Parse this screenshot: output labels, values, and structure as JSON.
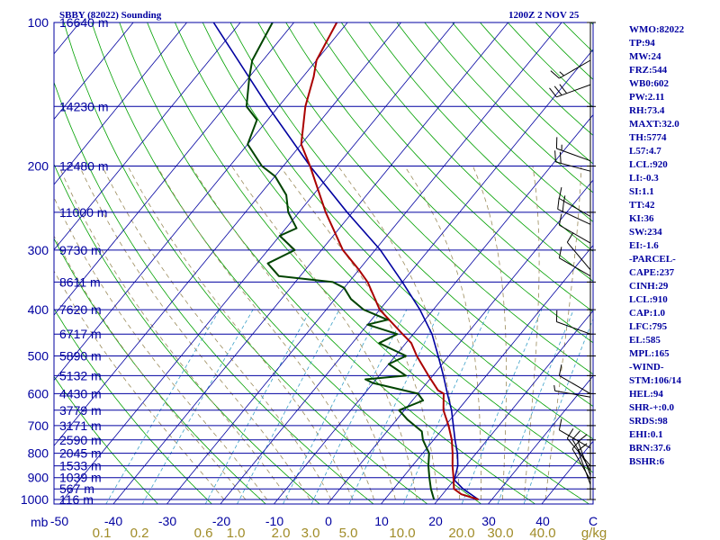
{
  "chart_data": {
    "type": "skew-t",
    "station_title": "SBBY (82022) Sounding",
    "time_title": "1200Z  2 NOV 25",
    "pressure_ticks": [
      100,
      200,
      300,
      400,
      500,
      600,
      700,
      800,
      900,
      1000
    ],
    "pressure_axis_label": "mb",
    "temp_ticks": [
      "-50",
      "-40",
      "-30",
      "-20",
      "-10",
      "0",
      "10",
      "20",
      "30",
      "40",
      "C"
    ],
    "mixing_ratio_ticks": [
      "0.1",
      "0.2",
      "0.6",
      "1.0",
      "2.0",
      "3.0",
      "5.0",
      "10.0",
      "20.0",
      "30.0",
      "40.0",
      "g/kg"
    ],
    "height_labels": [
      {
        "p": 100,
        "label": "16640 m"
      },
      {
        "p": 150,
        "label": "14230 m"
      },
      {
        "p": 200,
        "label": "12480 m"
      },
      {
        "p": 250,
        "label": "11000 m"
      },
      {
        "p": 300,
        "label": "9730 m"
      },
      {
        "p": 350,
        "label": "8611 m"
      },
      {
        "p": 400,
        "label": "7620 m"
      },
      {
        "p": 450,
        "label": "6717 m"
      },
      {
        "p": 500,
        "label": "5890 m"
      },
      {
        "p": 550,
        "label": "5132 m"
      },
      {
        "p": 600,
        "label": "4430 m"
      },
      {
        "p": 650,
        "label": "3779 m"
      },
      {
        "p": 700,
        "label": "3171 m"
      },
      {
        "p": 750,
        "label": "2590 m"
      },
      {
        "p": 800,
        "label": "2045 m"
      },
      {
        "p": 850,
        "label": "1533 m"
      },
      {
        "p": 900,
        "label": "1039 m"
      },
      {
        "p": 950,
        "label": "567 m"
      },
      {
        "p": 1000,
        "label": "116 m"
      }
    ],
    "temperature": {
      "color": "#aa0000",
      "points": [
        [
          1000,
          27.5
        ],
        [
          975,
          23.5
        ],
        [
          950,
          21.3
        ],
        [
          900,
          19.5
        ],
        [
          850,
          17.5
        ],
        [
          800,
          15.6
        ],
        [
          750,
          13.4
        ],
        [
          700,
          10.6
        ],
        [
          650,
          7.3
        ],
        [
          600,
          4.8
        ],
        [
          590,
          3.2
        ],
        [
          550,
          -0.8
        ],
        [
          500,
          -6.0
        ],
        [
          470,
          -9.0
        ],
        [
          450,
          -12.0
        ],
        [
          400,
          -20.0
        ],
        [
          350,
          -26.5
        ],
        [
          330,
          -30.0
        ],
        [
          300,
          -36.0
        ],
        [
          250,
          -45.0
        ],
        [
          200,
          -55.0
        ],
        [
          180,
          -60.0
        ],
        [
          150,
          -65.0
        ],
        [
          130,
          -68.0
        ],
        [
          120,
          -70.0
        ],
        [
          100,
          -72.0
        ]
      ]
    },
    "dewpoint": {
      "color": "#004400",
      "points": [
        [
          1000,
          19.2
        ],
        [
          950,
          17.0
        ],
        [
          900,
          15.0
        ],
        [
          850,
          13.0
        ],
        [
          800,
          11.2
        ],
        [
          750,
          8.0
        ],
        [
          720,
          6.5
        ],
        [
          680,
          2.0
        ],
        [
          650,
          -1.0
        ],
        [
          620,
          2.0
        ],
        [
          600,
          0.0
        ],
        [
          570,
          -10.0
        ],
        [
          560,
          -12.0
        ],
        [
          550,
          -5.0
        ],
        [
          520,
          -10.0
        ],
        [
          500,
          -8.0
        ],
        [
          470,
          -15.0
        ],
        [
          450,
          -13.0
        ],
        [
          430,
          -20.0
        ],
        [
          420,
          -17.0
        ],
        [
          400,
          -23.0
        ],
        [
          380,
          -27.0
        ],
        [
          360,
          -30.0
        ],
        [
          350,
          -33.0
        ],
        [
          340,
          -44.0
        ],
        [
          320,
          -48.0
        ],
        [
          300,
          -45.0
        ],
        [
          280,
          -50.0
        ],
        [
          270,
          -48.0
        ],
        [
          250,
          -52.0
        ],
        [
          230,
          -55.0
        ],
        [
          210,
          -60.0
        ],
        [
          200,
          -64.0
        ],
        [
          180,
          -70.0
        ],
        [
          160,
          -72.0
        ],
        [
          150,
          -76.0
        ],
        [
          130,
          -80.0
        ],
        [
          120,
          -82.0
        ],
        [
          100,
          -84.0
        ]
      ]
    },
    "parcel": {
      "color": "#0000a0",
      "points": [
        [
          1000,
          27.5
        ],
        [
          950,
          23.0
        ],
        [
          910,
          20.0
        ],
        [
          850,
          18.5
        ],
        [
          800,
          16.5
        ],
        [
          750,
          14.0
        ],
        [
          700,
          11.5
        ],
        [
          650,
          8.8
        ],
        [
          600,
          5.5
        ],
        [
          550,
          2.0
        ],
        [
          500,
          -2.0
        ],
        [
          450,
          -6.5
        ],
        [
          400,
          -12.5
        ],
        [
          350,
          -20.0
        ],
        [
          300,
          -29.0
        ],
        [
          250,
          -41.0
        ],
        [
          200,
          -55.0
        ],
        [
          150,
          -72.0
        ],
        [
          100,
          -95.0
        ]
      ]
    },
    "index_labels": [
      "WMO:82022",
      "TP:94",
      "MW:24",
      "FRZ:544",
      "WB0:602",
      "PW:2.11",
      "RH:73.4",
      "MAXT:32.0",
      "TH:5774",
      "L57:4.7",
      "LCL:920",
      "LI:-0.3",
      "SI:1.1",
      "TT:42",
      "KI:36",
      "SW:234",
      "EI:-1.6",
      "-PARCEL-",
      "CAPE:237",
      "CINH:29",
      "LCL:910",
      "CAP:1.0",
      "LFC:795",
      "EL:585",
      "MPL:165",
      "-WIND-",
      "STM:106/14",
      "HEL:94",
      "SHR-+:0.0",
      "SRDS:98",
      "EHI:0.1",
      "BRN:37.6",
      "BSHR:6"
    ],
    "wind_barbs": [
      {
        "p": 120,
        "dir": 240,
        "speed": 15
      },
      {
        "p": 135,
        "dir": 250,
        "speed": 30
      },
      {
        "p": 195,
        "dir": 290,
        "speed": 15
      },
      {
        "p": 205,
        "dir": 285,
        "speed": 20
      },
      {
        "p": 255,
        "dir": 300,
        "speed": 15
      },
      {
        "p": 265,
        "dir": 295,
        "speed": 20
      },
      {
        "p": 290,
        "dir": 300,
        "speed": 10
      },
      {
        "p": 330,
        "dir": 320,
        "speed": 10
      },
      {
        "p": 340,
        "dir": 300,
        "speed": 10
      },
      {
        "p": 450,
        "dir": 290,
        "speed": 10
      },
      {
        "p": 600,
        "dir": 300,
        "speed": 10
      },
      {
        "p": 610,
        "dir": 280,
        "speed": 5
      },
      {
        "p": 780,
        "dir": 300,
        "speed": 10
      },
      {
        "p": 850,
        "dir": 320,
        "speed": 10
      },
      {
        "p": 870,
        "dir": 330,
        "speed": 10
      },
      {
        "p": 890,
        "dir": 340,
        "speed": 10
      },
      {
        "p": 910,
        "dir": 330,
        "speed": 10
      },
      {
        "p": 930,
        "dir": 340,
        "speed": 10
      }
    ],
    "colors": {
      "isobar": "#0000a0",
      "isotherm": "#0000a0",
      "dry_adiabat": "#00a000",
      "moist_adiabat": "#9a8a5a",
      "mixing_ratio": "#3aa0c8",
      "axis_text": "#0000a0",
      "mixing_text": "#a08c28"
    }
  }
}
